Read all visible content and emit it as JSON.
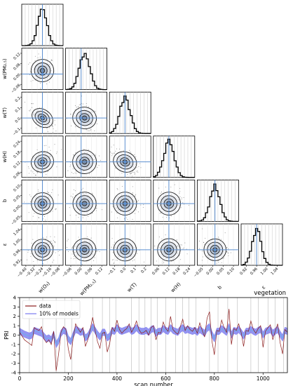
{
  "chart_data": [
    {
      "type": "corner",
      "parameters": [
        "w(O$_3$)",
        "w(PM$_{2.5}$)",
        "w(T)",
        "w(H)",
        "b",
        "ε"
      ],
      "xlabels": [
        "w(O₃)",
        "w(PM₂.₅)",
        "w(T)",
        "w(H)",
        "b",
        "ε"
      ],
      "ylabels": [
        "",
        "w(PM₂.₅)",
        "w(T)",
        "w(H)",
        "b",
        "ε"
      ],
      "xticks": [
        [
          "−0.40",
          "−0.32",
          "−0.24",
          "−0.16",
          "−0.08"
        ],
        [
          "−0.06",
          "0.00",
          "0.06",
          "0.12"
        ],
        [
          "−0.1",
          "0.0",
          "0.1",
          "0.2"
        ],
        [
          "0.06",
          "0.12",
          "0.18",
          "0.24"
        ],
        [
          "−0.05",
          "0.00",
          "0.05",
          "0.10"
        ],
        [
          "0.92",
          "0.96",
          "1.00",
          "1.04"
        ]
      ],
      "yticks": [
        [],
        [
          "−0.06",
          "0.00",
          "0.06",
          "0.12"
        ],
        [
          "−0.1",
          "0.0",
          "0.1",
          "0.2"
        ],
        [
          "0.06",
          "0.12",
          "0.18",
          "0.24"
        ],
        [
          "−0.05",
          "0.00",
          "0.05",
          "0.10"
        ],
        [
          "0.92",
          "0.96",
          "1.00",
          "1.04"
        ]
      ],
      "truths": [
        -0.24,
        0.0,
        0.0,
        0.12,
        0.0,
        0.96
      ],
      "means": [
        -0.24,
        0.02,
        0.0,
        0.12,
        0.0,
        0.96
      ],
      "sigmas": [
        0.045,
        0.03,
        0.05,
        0.03,
        0.025,
        0.018
      ],
      "correlations": [
        {
          "pair": [
            0,
            2
          ],
          "r": -0.75
        },
        {
          "pair": [
            2,
            3
          ],
          "r": -0.5
        },
        {
          "pair": [
            0,
            3
          ],
          "r": 0.35
        },
        {
          "pair": [
            1,
            2
          ],
          "r": -0.3
        }
      ],
      "colors": {
        "truth_line": "#5b8fd0",
        "contour": "#222222",
        "scatter": "#444444"
      }
    },
    {
      "type": "line",
      "title": "vegetation",
      "xlabel": "scan number",
      "ylabel": "PRI",
      "xlim": [
        0,
        1100
      ],
      "ylim": [
        -4,
        4
      ],
      "xticks": [
        0,
        200,
        400,
        600,
        800,
        1000
      ],
      "yticks": [
        -4,
        -3,
        -2,
        -1,
        0,
        1,
        2,
        3,
        4
      ],
      "legend_position": "top-left",
      "series": [
        {
          "name": "data",
          "color": "#8b1a1a"
        },
        {
          "name": "10% of models",
          "color": "#7a7af0"
        }
      ],
      "vlines": [
        40,
        95,
        150,
        185,
        215,
        300,
        340,
        370,
        395,
        460,
        490,
        515,
        540,
        565,
        600,
        640,
        670,
        695,
        725,
        780,
        815,
        855,
        895,
        950,
        980,
        1020,
        1050,
        1085
      ],
      "data_x": [
        0,
        20,
        40,
        50,
        60,
        70,
        80,
        90,
        100,
        110,
        120,
        130,
        140,
        150,
        160,
        170,
        180,
        190,
        200,
        210,
        220,
        230,
        240,
        250,
        260,
        270,
        280,
        290,
        300,
        310,
        320,
        330,
        340,
        350,
        360,
        370,
        380,
        390,
        400,
        410,
        420,
        430,
        440,
        450,
        460,
        470,
        480,
        490,
        500,
        510,
        520,
        530,
        540,
        550,
        560,
        570,
        580,
        590,
        600,
        610,
        620,
        630,
        640,
        650,
        660,
        670,
        680,
        690,
        700,
        710,
        720,
        730,
        740,
        750,
        760,
        770,
        780,
        790,
        800,
        810,
        820,
        830,
        840,
        850,
        860,
        870,
        880,
        890,
        900,
        910,
        920,
        930,
        940,
        950,
        960,
        970,
        980,
        990,
        1000,
        1010,
        1020,
        1030,
        1040,
        1050,
        1060,
        1070,
        1080,
        1090,
        1100
      ],
      "data_y": [
        0.3,
        -0.5,
        -0.9,
        -1.1,
        0.8,
        0.6,
        0.5,
        0.9,
        -0.4,
        -0.8,
        -0.5,
        -1.0,
        0.4,
        -3.8,
        -2.0,
        0.3,
        0.9,
        0.6,
        -1.5,
        -2.6,
        -0.3,
        1.2,
        0.7,
        0.3,
        0.8,
        -1.2,
        -0.5,
        0.6,
        1.9,
        0.5,
        -0.7,
        -1.4,
        0.2,
        0.3,
        -1.8,
        -0.9,
        0.8,
        0.4,
        1.6,
        0.6,
        0.2,
        0.5,
        0.7,
        1.2,
        0.3,
        0.8,
        1.5,
        0.6,
        0.2,
        0.3,
        0.5,
        0.0,
        0.8,
        1.0,
        -0.5,
        0.3,
        0.2,
        1.4,
        0.7,
        0.4,
        2.0,
        0.6,
        0.3,
        0.1,
        0.9,
        1.7,
        0.5,
        1.0,
        0.6,
        0.4,
        0.8,
        0.2,
        1.3,
        0.5,
        -0.2,
        1.8,
        2.5,
        -0.6,
        -2.1,
        0.5,
        0.4,
        1.6,
        0.8,
        0.3,
        2.8,
        -1.0,
        0.7,
        0.5,
        1.2,
        0.3,
        -1.2,
        0.5,
        0.4,
        1.5,
        0.6,
        0.2,
        0.7,
        1.0,
        -1.3,
        0.4,
        0.8,
        1.1,
        -0.5,
        0.4,
        1.2,
        -0.8,
        -2.0,
        0.6,
        0.3
      ],
      "model_y": [
        0.4,
        0.1,
        -0.1,
        0.0,
        0.5,
        0.4,
        0.3,
        0.2,
        -0.1,
        -0.4,
        -0.3,
        -0.5,
        0.1,
        -1.0,
        -0.6,
        0.2,
        0.5,
        0.4,
        -0.4,
        -0.7,
        0.0,
        0.6,
        0.5,
        0.3,
        0.4,
        -0.3,
        -0.1,
        0.4,
        0.9,
        0.5,
        0.1,
        -0.2,
        0.3,
        0.3,
        -0.3,
        -0.1,
        0.5,
        0.4,
        0.8,
        0.5,
        0.4,
        0.5,
        0.6,
        0.7,
        0.4,
        0.5,
        0.8,
        0.5,
        0.4,
        0.4,
        0.5,
        0.3,
        0.6,
        0.7,
        0.2,
        0.4,
        0.4,
        0.7,
        0.5,
        0.4,
        0.8,
        0.5,
        0.4,
        0.3,
        0.6,
        0.8,
        0.5,
        0.6,
        0.5,
        0.4,
        0.5,
        0.3,
        0.6,
        0.4,
        0.2,
        0.7,
        0.9,
        0.1,
        -0.4,
        0.4,
        0.4,
        0.7,
        0.5,
        0.3,
        0.9,
        0.0,
        0.5,
        0.4,
        0.6,
        0.3,
        -0.1,
        0.4,
        0.4,
        0.6,
        0.4,
        0.3,
        0.5,
        0.6,
        0.0,
        0.4,
        0.5,
        0.6,
        0.2,
        0.4,
        0.6,
        0.1,
        -0.3,
        0.5,
        0.4
      ]
    }
  ]
}
